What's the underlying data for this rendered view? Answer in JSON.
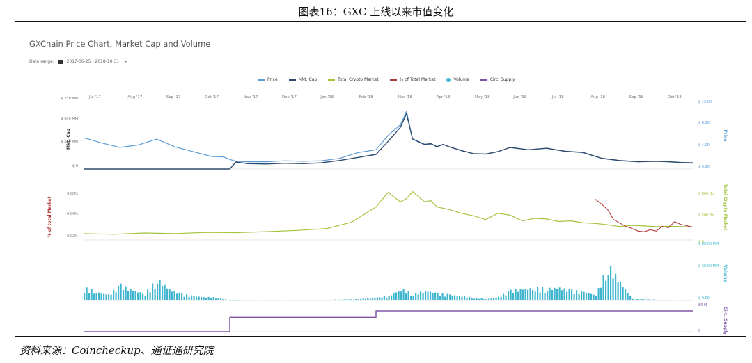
{
  "figure_title": "图表16：GXC 上线以来市值变化",
  "source": "资料来源：Coincheckup、通证通研究院",
  "chart_title": "GXChain Price Chart, Market Cap and Volume",
  "date_range_label": "Date range:",
  "date_range_value": "2017-06-25 - 2018-10-31",
  "dropdown_glyph": "▾",
  "legend": [
    {
      "name": "Price",
      "color": "#5b9bd5",
      "kind": "line"
    },
    {
      "name": "Mkt. Cap",
      "color": "#2f4a6d",
      "kind": "line"
    },
    {
      "name": "Total Crypto Market",
      "color": "#a3c43f",
      "kind": "line"
    },
    {
      "name": "% of Total Market",
      "color": "#b23a3a",
      "kind": "line"
    },
    {
      "name": "Volume",
      "color": "#3fb5cf",
      "kind": "dot"
    },
    {
      "name": "Circ. Supply",
      "color": "#7e57a8",
      "kind": "line"
    }
  ],
  "chart_data": {
    "type": "line",
    "x_ticks": [
      "Jul '17",
      "Aug '17",
      "Sep '17",
      "Oct '17",
      "Nov '17",
      "Dec '17",
      "Jan '18",
      "Feb '18",
      "Mar '18",
      "Apr '18",
      "May '18",
      "Jun '18",
      "Jul '18",
      "Aug '18",
      "Sep '18",
      "Oct '18"
    ],
    "panels": [
      {
        "id": "price",
        "left_axis_label": "Mkt. Cap",
        "left_ticks": [
          "$ 750 MM",
          "$ 500 MM",
          "$ 250 MM",
          "$ 0"
        ],
        "left_range": [
          0,
          750
        ],
        "right_axis_label": "Price",
        "right_ticks": [
          "$ 12.00",
          "$ 8.00",
          "$ 4.00",
          "$ 0.00"
        ],
        "right_range": [
          0,
          12
        ],
        "series": [
          {
            "name": "Price",
            "color": "#5b9bd5",
            "x": [
              0,
              0.03,
              0.06,
              0.09,
              0.12,
              0.15,
              0.18,
              0.21,
              0.23,
              0.24,
              0.25,
              0.27,
              0.3,
              0.33,
              0.36,
              0.39,
              0.42,
              0.45,
              0.48,
              0.5,
              0.52,
              0.53,
              0.54,
              0.56,
              0.57,
              0.58,
              0.59,
              0.6,
              0.62,
              0.64,
              0.66,
              0.68,
              0.7,
              0.73,
              0.76,
              0.79,
              0.82,
              0.85,
              0.88,
              0.91,
              0.94,
              0.96,
              0.98,
              1.0
            ],
            "y": [
              6.5,
              5.4,
              4.5,
              5.0,
              6.2,
              4.6,
              3.6,
              2.6,
              2.5,
              2.0,
              1.6,
              1.5,
              1.5,
              1.7,
              1.6,
              1.7,
              2.2,
              3.4,
              4.0,
              7.0,
              9.2,
              12.0,
              6.2,
              5.0,
              5.2,
              4.6,
              5.1,
              4.6,
              3.8,
              3.2,
              3.1,
              3.6,
              4.5,
              4.0,
              4.3,
              3.7,
              3.4,
              2.2,
              1.7,
              1.5,
              1.6,
              1.5,
              1.3,
              1.2
            ]
          },
          {
            "name": "Mkt. Cap",
            "color": "#2f4a6d",
            "x": [
              0,
              0.1,
              0.2,
              0.24,
              0.25,
              0.27,
              0.3,
              0.33,
              0.36,
              0.39,
              0.42,
              0.45,
              0.48,
              0.5,
              0.52,
              0.53,
              0.54,
              0.56,
              0.57,
              0.58,
              0.59,
              0.6,
              0.62,
              0.64,
              0.66,
              0.68,
              0.7,
              0.73,
              0.76,
              0.79,
              0.82,
              0.85,
              0.88,
              0.91,
              0.94,
              0.96,
              0.98,
              1.0
            ],
            "y": [
              0,
              0,
              0,
              0,
              90,
              70,
              65,
              75,
              70,
              80,
              110,
              150,
              190,
              360,
              540,
              720,
              390,
              320,
              330,
              290,
              320,
              290,
              240,
              200,
              195,
              225,
              280,
              250,
              270,
              230,
              215,
              140,
              110,
              95,
              100,
              95,
              85,
              80
            ]
          }
        ]
      },
      {
        "id": "market",
        "left_axis_label": "% of total Market",
        "left_ticks": [
          "0.08%",
          "0.04%",
          "0.02%"
        ],
        "right_axis_label": "Total Crypto Market",
        "right_ticks": [
          "$ 800 Bn",
          "$ 500 Bn",
          "$ 0"
        ],
        "series": [
          {
            "name": "Total Crypto Market",
            "color": "#a3c43f",
            "x": [
              0,
              0.05,
              0.1,
              0.15,
              0.2,
              0.25,
              0.3,
              0.35,
              0.4,
              0.44,
              0.48,
              0.5,
              0.52,
              0.53,
              0.54,
              0.56,
              0.57,
              0.58,
              0.6,
              0.62,
              0.64,
              0.66,
              0.68,
              0.7,
              0.72,
              0.74,
              0.76,
              0.78,
              0.8,
              0.82,
              0.84,
              0.86,
              0.88,
              0.9,
              0.92,
              0.94,
              0.96,
              0.98,
              1.0
            ],
            "y": [
              100,
              90,
              110,
              100,
              120,
              115,
              130,
              150,
              180,
              280,
              520,
              750,
              600,
              650,
              760,
              600,
              620,
              520,
              480,
              420,
              380,
              320,
              420,
              390,
              300,
              340,
              330,
              290,
              300,
              270,
              260,
              240,
              210,
              230,
              220,
              210,
              215,
              210,
              205
            ]
          },
          {
            "name": "% of Total Market",
            "color": "#b23a3a",
            "x": [
              0.84,
              0.85,
              0.86,
              0.87,
              0.88,
              0.89,
              0.9,
              0.91,
              0.92,
              0.93,
              0.94,
              0.95,
              0.96,
              0.97,
              0.98,
              0.99,
              1.0
            ],
            "y": [
              0.075,
              0.068,
              0.06,
              0.045,
              0.04,
              0.035,
              0.032,
              0.028,
              0.027,
              0.03,
              0.028,
              0.035,
              0.033,
              0.042,
              0.038,
              0.036,
              0.034
            ]
          }
        ]
      },
      {
        "id": "volume",
        "right_axis_label": "Volume",
        "right_ticks": [
          "$ 60.00 MM",
          "$ 30.00 MM",
          "$ 0.00"
        ],
        "series": [
          {
            "name": "Volume",
            "color": "#3fb5cf",
            "x": [
              0,
              0.02,
              0.04,
              0.06,
              0.08,
              0.1,
              0.12,
              0.14,
              0.16,
              0.18,
              0.2,
              0.22,
              0.24,
              0.3,
              0.35,
              0.4,
              0.45,
              0.5,
              0.52,
              0.54,
              0.56,
              0.58,
              0.6,
              0.62,
              0.64,
              0.66,
              0.68,
              0.7,
              0.72,
              0.74,
              0.76,
              0.78,
              0.8,
              0.82,
              0.84,
              0.86,
              0.9,
              0.95,
              1.0
            ],
            "y": [
              18,
              12,
              8,
              22,
              14,
              10,
              30,
              16,
              9,
              6,
              5,
              4,
              0,
              1,
              1,
              1,
              2,
              6,
              16,
              9,
              14,
              10,
              8,
              6,
              4,
              2,
              5,
              14,
              16,
              18,
              17,
              18,
              14,
              12,
              8,
              50,
              2,
              1,
              1
            ]
          }
        ]
      },
      {
        "id": "supply",
        "right_axis_label": "Circ. Supply",
        "right_ticks": [
          "80 M",
          "0"
        ],
        "series": [
          {
            "name": "Circ. Supply",
            "color": "#7e57a8",
            "x": [
              0,
              0.24,
              0.24,
              0.48,
              0.48,
              1.0
            ],
            "y": [
              0,
              0,
              55,
              55,
              80,
              80
            ]
          }
        ]
      }
    ]
  }
}
